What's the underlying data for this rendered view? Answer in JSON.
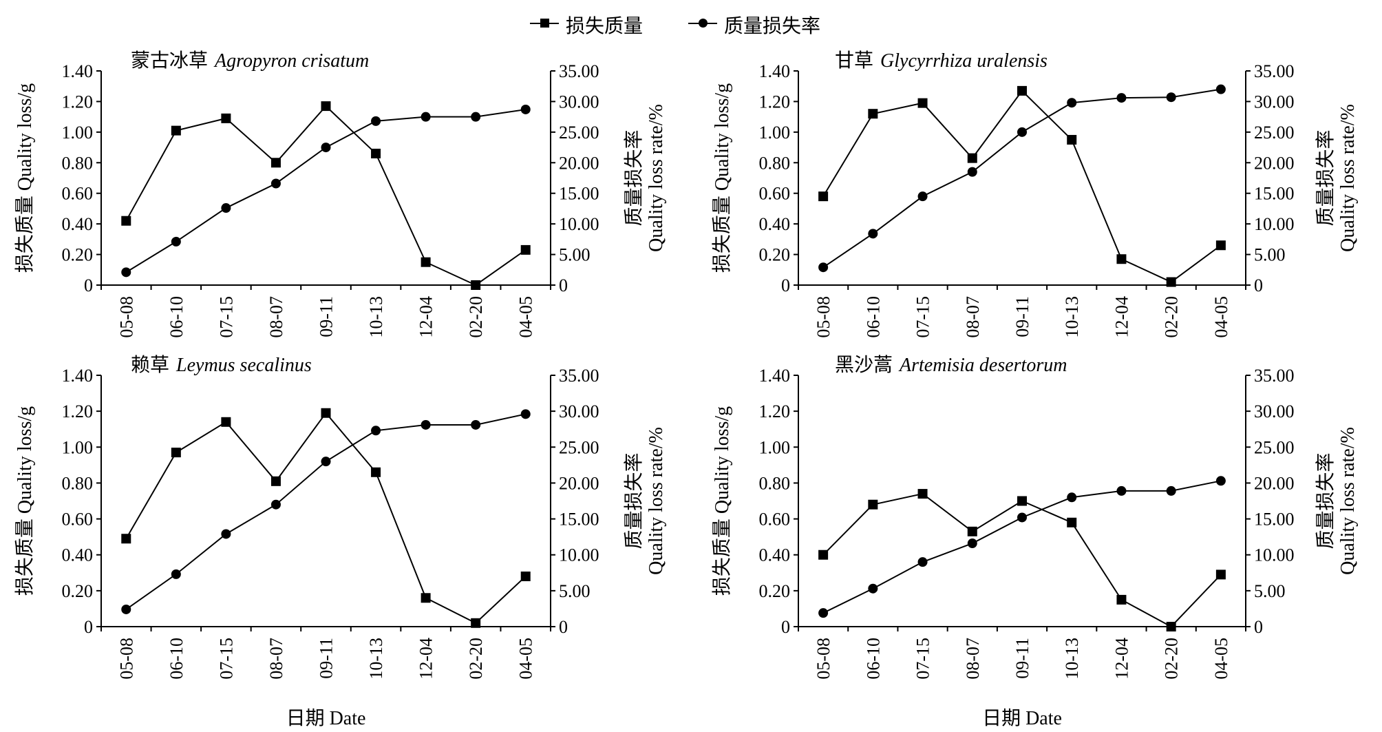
{
  "legend": {
    "series1": "损失质量",
    "series2": "质量损失率"
  },
  "chart_data": [
    {
      "type": "line",
      "title_cn": "蒙古冰草",
      "title_latin": "Agropyron crisatum",
      "ylabel": "损失质量 Quality loss/g",
      "y2label_cn": "质量损失率",
      "y2label_en": "Quality loss rate/%",
      "xlabel": "",
      "categories": [
        "05-08",
        "06-10",
        "07-15",
        "08-07",
        "09-11",
        "10-13",
        "12-04",
        "02-20",
        "04-05"
      ],
      "ylim": [
        0,
        1.4
      ],
      "yticks": [
        "0",
        "0.20",
        "0.40",
        "0.60",
        "0.80",
        "1.00",
        "1.20",
        "1.40"
      ],
      "y2lim": [
        0,
        35
      ],
      "y2ticks": [
        "0",
        "5.00",
        "10.00",
        "15.00",
        "20.00",
        "25.00",
        "30.00",
        "35.00"
      ],
      "series": [
        {
          "name": "损失质量",
          "axis": "left",
          "marker": "square",
          "values": [
            0.42,
            1.01,
            1.09,
            0.8,
            1.17,
            0.86,
            0.15,
            0.0,
            0.23
          ]
        },
        {
          "name": "质量损失率",
          "axis": "right",
          "marker": "circle",
          "values": [
            2.1,
            7.1,
            12.6,
            16.6,
            22.5,
            26.8,
            27.5,
            27.5,
            28.7
          ]
        }
      ]
    },
    {
      "type": "line",
      "title_cn": "甘草",
      "title_latin": "Glycyrrhiza uralensis",
      "ylabel": "损失质量 Quality loss/g",
      "y2label_cn": "质量损失率",
      "y2label_en": "Quality loss rate/%",
      "xlabel": "",
      "categories": [
        "05-08",
        "06-10",
        "07-15",
        "08-07",
        "09-11",
        "10-13",
        "12-04",
        "02-20",
        "04-05"
      ],
      "ylim": [
        0,
        1.4
      ],
      "yticks": [
        "0",
        "0.20",
        "0.40",
        "0.60",
        "0.80",
        "1.00",
        "1.20",
        "1.40"
      ],
      "y2lim": [
        0,
        35
      ],
      "y2ticks": [
        "0",
        "5.00",
        "10.00",
        "15.00",
        "20.00",
        "25.00",
        "30.00",
        "35.00"
      ],
      "series": [
        {
          "name": "损失质量",
          "axis": "left",
          "marker": "square",
          "values": [
            0.58,
            1.12,
            1.19,
            0.83,
            1.27,
            0.95,
            0.17,
            0.02,
            0.26
          ]
        },
        {
          "name": "质量损失率",
          "axis": "right",
          "marker": "circle",
          "values": [
            2.9,
            8.4,
            14.5,
            18.5,
            25.0,
            29.8,
            30.6,
            30.7,
            32.0
          ]
        }
      ]
    },
    {
      "type": "line",
      "title_cn": "赖草",
      "title_latin": "Leymus secalinus",
      "ylabel": "损失质量 Quality loss/g",
      "y2label_cn": "质量损失率",
      "y2label_en": "Quality loss rate/%",
      "xlabel": "日期 Date",
      "categories": [
        "05-08",
        "06-10",
        "07-15",
        "08-07",
        "09-11",
        "10-13",
        "12-04",
        "02-20",
        "04-05"
      ],
      "ylim": [
        0,
        1.4
      ],
      "yticks": [
        "0",
        "0.20",
        "0.40",
        "0.60",
        "0.80",
        "1.00",
        "1.20",
        "1.40"
      ],
      "y2lim": [
        0,
        35
      ],
      "y2ticks": [
        "0",
        "5.00",
        "10.00",
        "15.00",
        "20.00",
        "25.00",
        "30.00",
        "35.00"
      ],
      "series": [
        {
          "name": "损失质量",
          "axis": "left",
          "marker": "square",
          "values": [
            0.49,
            0.97,
            1.14,
            0.81,
            1.19,
            0.86,
            0.16,
            0.02,
            0.28
          ]
        },
        {
          "name": "质量损失率",
          "axis": "right",
          "marker": "circle",
          "values": [
            2.4,
            7.3,
            12.9,
            17.0,
            23.0,
            27.3,
            28.1,
            28.1,
            29.6
          ]
        }
      ]
    },
    {
      "type": "line",
      "title_cn": "黑沙蒿",
      "title_latin": "Artemisia desertorum",
      "ylabel": "损失质量 Quality loss/g",
      "y2label_cn": "质量损失率",
      "y2label_en": "Quality loss rate/%",
      "xlabel": "日期 Date",
      "categories": [
        "05-08",
        "06-10",
        "07-15",
        "08-07",
        "09-11",
        "10-13",
        "12-04",
        "02-20",
        "04-05"
      ],
      "ylim": [
        0,
        1.4
      ],
      "yticks": [
        "0",
        "0.20",
        "0.40",
        "0.60",
        "0.80",
        "1.00",
        "1.20",
        "1.40"
      ],
      "y2lim": [
        0,
        35
      ],
      "y2ticks": [
        "0",
        "5.00",
        "10.00",
        "15.00",
        "20.00",
        "25.00",
        "30.00",
        "35.00"
      ],
      "series": [
        {
          "name": "损失质量",
          "axis": "left",
          "marker": "square",
          "values": [
            0.4,
            0.68,
            0.74,
            0.53,
            0.7,
            0.58,
            0.15,
            0.0,
            0.29
          ]
        },
        {
          "name": "质量损失率",
          "axis": "right",
          "marker": "circle",
          "values": [
            1.9,
            5.3,
            9.0,
            11.6,
            15.2,
            18.0,
            18.9,
            18.9,
            20.3
          ]
        }
      ]
    }
  ]
}
